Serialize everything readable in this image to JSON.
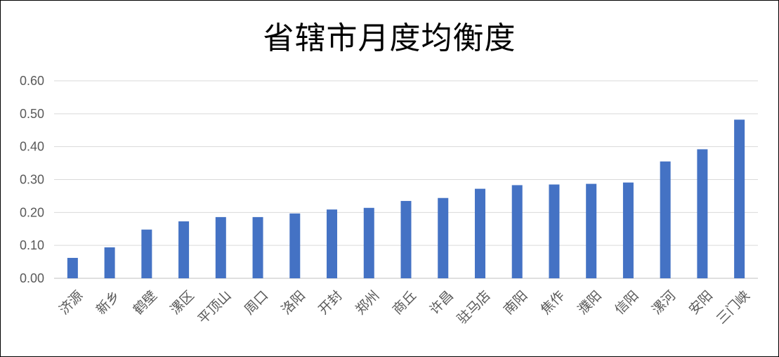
{
  "chart_data": {
    "type": "bar",
    "title": "省辖市月度均衡度",
    "xlabel": "",
    "ylabel": "",
    "ylim": [
      0,
      0.6
    ],
    "yticks": [
      "0.00",
      "0.10",
      "0.20",
      "0.30",
      "0.40",
      "0.50",
      "0.60"
    ],
    "grid": true,
    "legend": "none",
    "bar_color": "#4472C4",
    "categories": [
      "济源",
      "新乡",
      "鹤壁",
      "漯区",
      "平顶山",
      "周口",
      "洛阳",
      "开封",
      "郑州",
      "商丘",
      "许昌",
      "驻马店",
      "南阳",
      "焦作",
      "濮阳",
      "信阳",
      "漯河",
      "安阳",
      "三门峡"
    ],
    "values": [
      0.062,
      0.094,
      0.148,
      0.173,
      0.186,
      0.186,
      0.197,
      0.209,
      0.214,
      0.235,
      0.244,
      0.272,
      0.283,
      0.285,
      0.287,
      0.291,
      0.355,
      0.392,
      0.482
    ]
  }
}
